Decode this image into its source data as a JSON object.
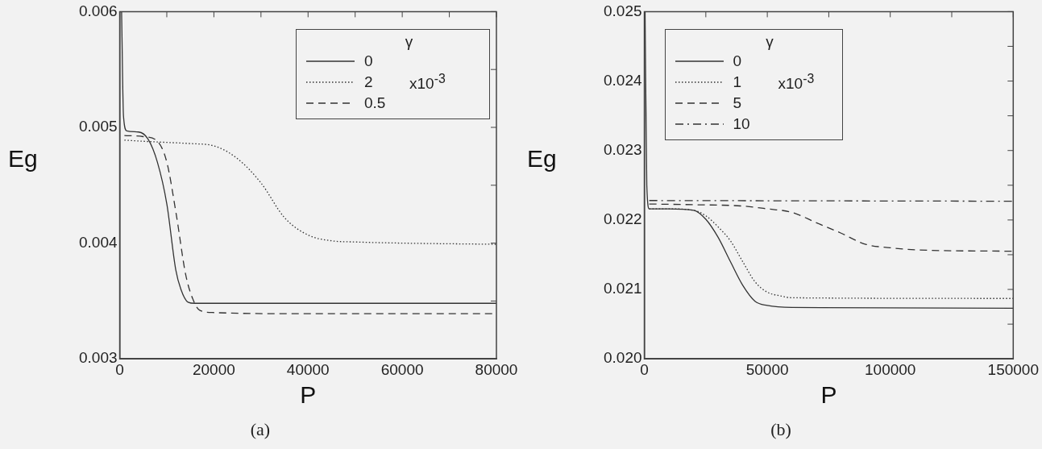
{
  "chart_data": [
    {
      "type": "line",
      "title": "(a)",
      "xlabel": "P",
      "ylabel": "Eg",
      "legend_title": "γ",
      "legend": "top right",
      "grid": false,
      "marker": "none",
      "annotations": [
        "x10$^{-3}$"
      ],
      "xlim": [
        0,
        80000
      ],
      "xticks": [
        0,
        {
          "value": 10000,
          "label": null
        },
        20000,
        {
          "value": 30000,
          "label": null
        },
        40000,
        {
          "value": 50000,
          "label": null
        },
        60000,
        {
          "value": 70000,
          "label": null
        },
        80000
      ],
      "ylim": [
        0.003,
        0.006
      ],
      "yticks": [
        0.003,
        {
          "value": 0.0035,
          "label": null
        },
        0.004,
        {
          "value": 0.0045,
          "label": null
        },
        0.005,
        {
          "value": 0.0055,
          "label": null
        },
        0.006
      ],
      "series": [
        {
          "name": "0",
          "color": "#333333",
          "line_style": "solid",
          "x": [
            400,
            800,
            1500,
            4000,
            6000,
            8000,
            10000,
            11900,
            13000,
            14500,
            16000,
            20000,
            40000,
            80000
          ],
          "values": [
            0.006,
            0.0051,
            0.00497,
            0.00496,
            0.0049,
            0.0047,
            0.00434,
            0.00377,
            0.0036,
            0.00349,
            0.00348,
            0.00348,
            0.00348,
            0.00348
          ]
        },
        {
          "name": "2",
          "color": "#333333",
          "line_style": "dotted",
          "x": [
            1000,
            5000,
            10000,
            15000,
            20000,
            25000,
            30000,
            35000,
            40000,
            45000,
            50000,
            60000,
            80000
          ],
          "values": [
            0.00489,
            0.00488,
            0.00487,
            0.00486,
            0.00484,
            0.00473,
            0.00452,
            0.00422,
            0.00407,
            0.00402,
            0.00401,
            0.004,
            0.00399
          ]
        },
        {
          "name": "0.5",
          "color": "#333333",
          "line_style": "dashed",
          "x": [
            1000,
            5000,
            8000,
            10000,
            12000,
            14000,
            15500,
            17000,
            20000,
            40000,
            80000
          ],
          "values": [
            0.00493,
            0.00492,
            0.00488,
            0.0047,
            0.00425,
            0.00373,
            0.00352,
            0.00342,
            0.0034,
            0.00339,
            0.00339
          ]
        }
      ]
    },
    {
      "type": "line",
      "title": "(b)",
      "xlabel": "P",
      "ylabel": "Eg",
      "legend_title": "γ",
      "legend": "top left",
      "grid": false,
      "marker": "none",
      "annotations": [
        "x10$^{-3}$"
      ],
      "xlim": [
        0,
        150000
      ],
      "xticks": [
        0,
        {
          "value": 25000,
          "label": null
        },
        50000,
        {
          "value": 75000,
          "label": null
        },
        100000,
        {
          "value": 125000,
          "label": null
        },
        150000
      ],
      "ylim": [
        0.02,
        0.025
      ],
      "yticks": [
        {
          "value": 0.02,
          "label": "0.020"
        },
        {
          "value": 0.0205,
          "label": null
        },
        0.021,
        {
          "value": 0.0215,
          "label": null
        },
        0.022,
        {
          "value": 0.0225,
          "label": null
        },
        0.023,
        {
          "value": 0.0235,
          "label": null
        },
        0.024,
        {
          "value": 0.0245,
          "label": null
        },
        0.025
      ],
      "series": [
        {
          "name": "0",
          "color": "#333333",
          "line_style": "solid",
          "x": [
            300,
            1000,
            2000,
            10000,
            20000,
            25000,
            30000,
            35000,
            40000,
            45000,
            50000,
            60000,
            150000
          ],
          "values": [
            0.025,
            0.0225,
            0.02216,
            0.02216,
            0.02214,
            0.02201,
            0.02175,
            0.0214,
            0.02106,
            0.02083,
            0.02077,
            0.02074,
            0.02073
          ]
        },
        {
          "name": "1",
          "color": "#333333",
          "line_style": "dotted",
          "x": [
            2000,
            10000,
            20000,
            25000,
            30000,
            35000,
            40000,
            45000,
            50000,
            55000,
            60000,
            150000
          ],
          "values": [
            0.02216,
            0.02216,
            0.02214,
            0.02206,
            0.0219,
            0.0217,
            0.0214,
            0.02111,
            0.02096,
            0.02091,
            0.02088,
            0.02087
          ]
        },
        {
          "name": "5",
          "color": "#333333",
          "line_style": "dashed",
          "x": [
            2000,
            20000,
            40000,
            50000,
            60000,
            70000,
            80000,
            90000,
            100000,
            110000,
            150000
          ],
          "values": [
            0.02223,
            0.02222,
            0.0222,
            0.02216,
            0.02211,
            0.02196,
            0.02181,
            0.02165,
            0.0216,
            0.02157,
            0.02155
          ]
        },
        {
          "name": "10",
          "color": "#333333",
          "line_style": "dashdot",
          "x": [
            2000,
            150000
          ],
          "values": [
            0.02228,
            0.02227
          ]
        }
      ]
    }
  ]
}
